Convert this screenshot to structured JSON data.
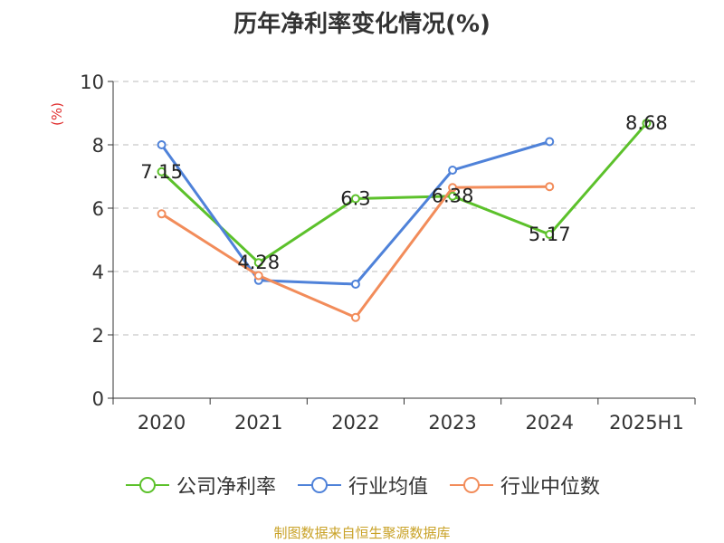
{
  "chart_data": {
    "type": "line",
    "title": "历年净利率变化情况(%)",
    "ylabel": "(%)",
    "xlabel": "",
    "categories": [
      "2020",
      "2021",
      "2022",
      "2023",
      "2024",
      "2025H1"
    ],
    "ylim": [
      0,
      10
    ],
    "yticks": [
      0,
      2,
      4,
      6,
      8,
      10
    ],
    "grid": true,
    "legend_position": "bottom",
    "series": [
      {
        "name": "公司净利率",
        "color": "#5cc12b",
        "values": [
          7.15,
          4.28,
          6.3,
          6.38,
          5.17,
          8.68
        ],
        "labels": [
          "7.15",
          "4.28",
          "6.3",
          "6.38",
          "5.17",
          "8.68"
        ]
      },
      {
        "name": "行业均值",
        "color": "#4f82d9",
        "values": [
          8.0,
          3.72,
          3.6,
          7.2,
          8.1,
          null
        ]
      },
      {
        "name": "行业中位数",
        "color": "#f28c5a",
        "values": [
          5.82,
          3.87,
          2.55,
          6.65,
          6.68,
          null
        ]
      }
    ]
  },
  "source_note": "制图数据来自恒生聚源数据库"
}
